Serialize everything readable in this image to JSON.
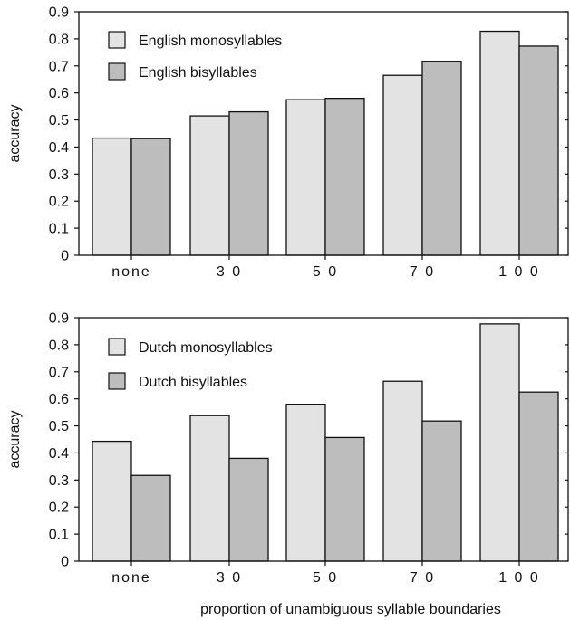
{
  "colors": {
    "mono": "#e3e3e3",
    "bi": "#bdbdbd",
    "stroke": "#111111"
  },
  "chart_data": [
    {
      "type": "bar",
      "categories": [
        "none",
        "3 0",
        "5 0",
        "7 0",
        "1 0 0"
      ],
      "series": [
        {
          "name": "English monosyllables",
          "values": [
            0.433,
            0.515,
            0.575,
            0.665,
            0.828
          ]
        },
        {
          "name": "English bisyllables",
          "values": [
            0.431,
            0.53,
            0.58,
            0.717,
            0.773
          ]
        }
      ],
      "ylabel": "accuracy",
      "xlabel": "",
      "ylim": [
        0,
        0.9
      ],
      "yticks": [
        "0",
        "0.1",
        "0.2",
        "0.3",
        "0.4",
        "0.5",
        "0.6",
        "0.7",
        "0.8",
        "0.9"
      ],
      "legend_placement": "top-left",
      "grid": false
    },
    {
      "type": "bar",
      "categories": [
        "none",
        "3 0",
        "5 0",
        "7 0",
        "1 0 0"
      ],
      "series": [
        {
          "name": "Dutch monosyllables",
          "values": [
            0.443,
            0.538,
            0.58,
            0.665,
            0.877
          ]
        },
        {
          "name": "Dutch bisyllables",
          "values": [
            0.317,
            0.38,
            0.457,
            0.518,
            0.625
          ]
        }
      ],
      "ylabel": "accuracy",
      "xlabel": "proportion of unambiguous syllable boundaries",
      "ylim": [
        0,
        0.9
      ],
      "yticks": [
        "0",
        "0.1",
        "0.2",
        "0.3",
        "0.4",
        "0.5",
        "0.6",
        "0.7",
        "0.8",
        "0.9"
      ],
      "legend_placement": "top-left",
      "grid": false
    }
  ]
}
